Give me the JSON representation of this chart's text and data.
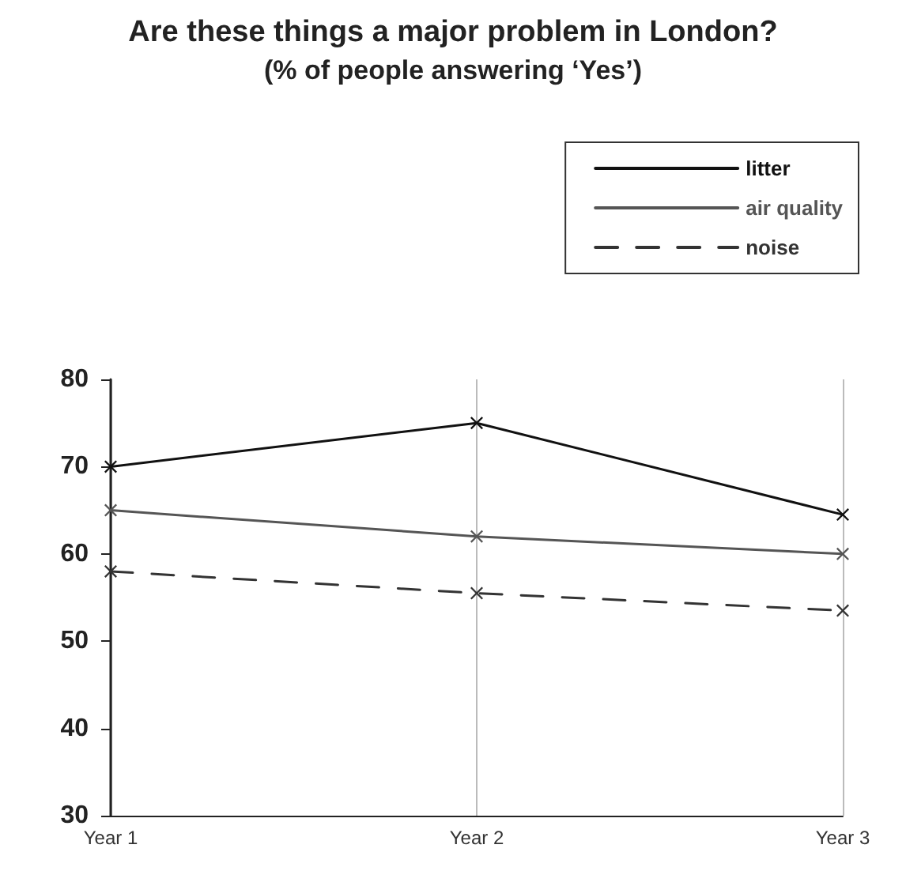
{
  "chart_data": {
    "type": "line",
    "title": "Are these things a major problem in London?",
    "subtitle": "(% of people answering ‘Yes’)",
    "categories": [
      "Year 1",
      "Year 2",
      "Year 3"
    ],
    "series": [
      {
        "name": "litter",
        "color": "#111111",
        "values": [
          70,
          75,
          64.5
        ],
        "line_style": "solid"
      },
      {
        "name": "air quality",
        "color": "#555555",
        "values": [
          65,
          62,
          60
        ],
        "line_style": "solid"
      },
      {
        "name": "noise",
        "color": "#333333",
        "values": [
          58,
          55.5,
          53.5
        ],
        "line_style": "dashed"
      }
    ],
    "ylim": [
      30,
      80
    ],
    "yticks": [
      30,
      40,
      50,
      60,
      70,
      80
    ],
    "grid": "x",
    "legend": "top right",
    "marker": "cross"
  }
}
